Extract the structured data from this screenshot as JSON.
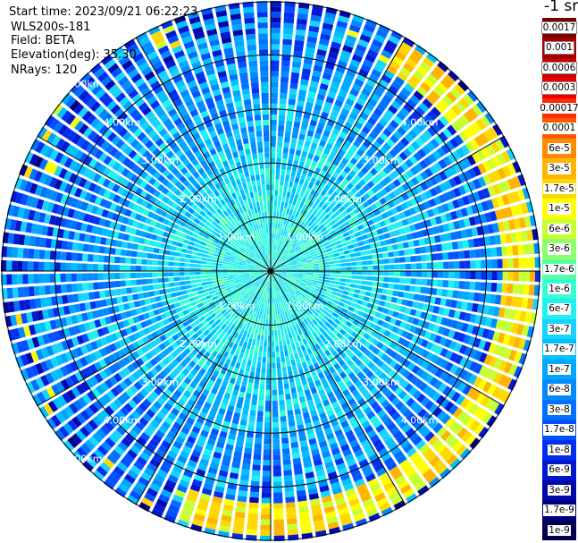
{
  "header": {
    "start_time": "Start time: 2023/09/21 06:22:23",
    "instrument": "WLS200s-181",
    "field": "Field: BETA",
    "elevation": "Elevation(deg): 35.30",
    "nrays": "NRays: 120"
  },
  "colorbar": {
    "unit_label": "-1 sr",
    "levels": [
      {
        "label": "0.0017",
        "color": "#7a0000",
        "boxed": true
      },
      {
        "label": "0.001",
        "color": "#a30000",
        "boxed": true
      },
      {
        "label": "0.0006",
        "color": "#c80000",
        "boxed": true
      },
      {
        "label": "0.0003",
        "color": "#ee0000",
        "boxed": true
      },
      {
        "label": "0.00017",
        "color": "#ff2a00",
        "boxed": false
      },
      {
        "label": "0.0001",
        "color": "#ff5a00",
        "boxed": false
      },
      {
        "label": "6e-5",
        "color": "#ff8c00",
        "boxed": false
      },
      {
        "label": "3e-5",
        "color": "#ffb400",
        "boxed": false
      },
      {
        "label": "1.7e-5",
        "color": "#ffd800",
        "boxed": false
      },
      {
        "label": "1e-5",
        "color": "#ffff00",
        "boxed": false
      },
      {
        "label": "6e-6",
        "color": "#c8ff33",
        "boxed": false
      },
      {
        "label": "3e-6",
        "color": "#8cff6a",
        "boxed": false
      },
      {
        "label": "1.7e-6",
        "color": "#55ffa3",
        "boxed": false
      },
      {
        "label": "1e-6",
        "color": "#33ffd0",
        "boxed": false
      },
      {
        "label": "6e-7",
        "color": "#1ff0f0",
        "boxed": false
      },
      {
        "label": "3e-7",
        "color": "#19d3ff",
        "boxed": false
      },
      {
        "label": "1.7e-7",
        "color": "#00c0ff",
        "boxed": false
      },
      {
        "label": "1e-7",
        "color": "#00a6ff",
        "boxed": false
      },
      {
        "label": "6e-8",
        "color": "#008cff",
        "boxed": false
      },
      {
        "label": "3e-8",
        "color": "#0070ff",
        "boxed": false
      },
      {
        "label": "1.7e-8",
        "color": "#0050ff",
        "boxed": false
      },
      {
        "label": "1e-8",
        "color": "#0030ee",
        "boxed": false
      },
      {
        "label": "6e-9",
        "color": "#0018d0",
        "boxed": false
      },
      {
        "label": "3e-9",
        "color": "#0008aa",
        "boxed": false
      },
      {
        "label": "1.7e-9",
        "color": "#00007f",
        "boxed": false
      },
      {
        "label": "1e-9",
        "color": "#00004f",
        "boxed": false
      }
    ]
  },
  "chart_data": {
    "type": "heatmap",
    "projection": "polar",
    "field": "BETA",
    "elevation_deg": 35.3,
    "n_rays": 120,
    "range_rings_km": [
      1,
      2,
      3,
      4,
      5
    ],
    "ring_labels": [
      "1.00km",
      "2.00km",
      "3.00km",
      "4.00km",
      "5.00km"
    ],
    "spokes_deg": [
      0,
      30,
      60,
      90,
      120,
      150,
      180,
      210,
      240,
      270,
      300,
      330
    ],
    "range_max_km": 5.0,
    "value_scale": "log",
    "value_range": [
      1e-09,
      0.0017
    ],
    "typical_value_near": 1e-06,
    "typical_value_mid": 1e-07,
    "enhanced_band": {
      "range_km": [
        4.3,
        4.9
      ],
      "azimuth_deg": [
        30,
        200
      ],
      "value_range": [
        1e-05,
        6e-05
      ]
    }
  }
}
